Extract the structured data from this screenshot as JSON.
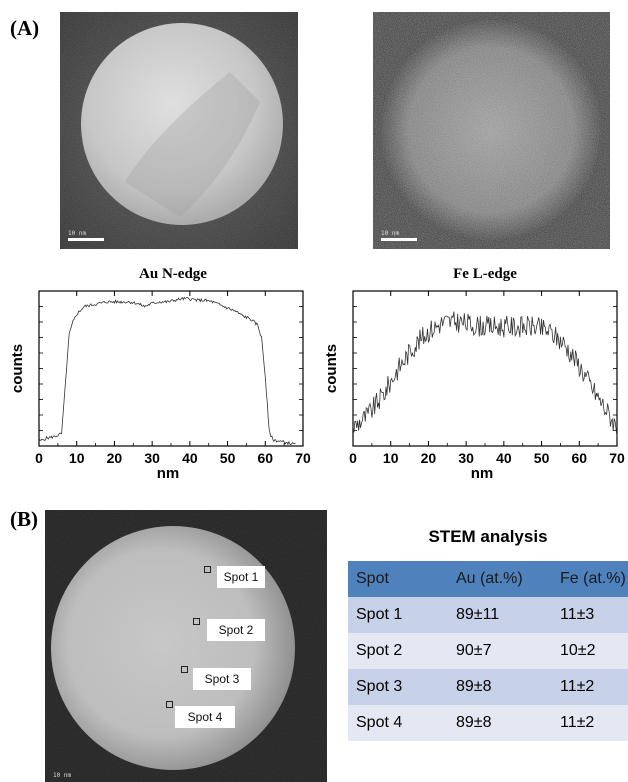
{
  "panels": {
    "a_label": "(A)",
    "b_label": "(B)"
  },
  "micrographs": {
    "scale_bar_text": "10 nm"
  },
  "chart_data": [
    {
      "type": "line",
      "title": "Au N-edge",
      "xlabel": "nm",
      "ylabel": "counts",
      "xlim": [
        0,
        70
      ],
      "xticks": [
        0,
        10,
        20,
        30,
        40,
        50,
        60,
        70
      ],
      "y_tick_labels_shown": false,
      "series": [
        {
          "x": [
            0,
            2,
            4,
            6,
            7,
            8,
            9,
            10,
            12,
            14,
            16,
            18,
            20,
            22,
            24,
            26,
            28,
            30,
            32,
            34,
            36,
            38,
            40,
            42,
            44,
            46,
            48,
            50,
            52,
            54,
            56,
            58,
            59,
            60,
            61,
            62,
            64,
            66,
            68
          ],
          "y": [
            0.03,
            0.05,
            0.06,
            0.08,
            0.4,
            0.72,
            0.8,
            0.85,
            0.9,
            0.91,
            0.92,
            0.93,
            0.93,
            0.93,
            0.93,
            0.92,
            0.9,
            0.92,
            0.93,
            0.93,
            0.94,
            0.95,
            0.95,
            0.94,
            0.94,
            0.93,
            0.91,
            0.89,
            0.87,
            0.84,
            0.82,
            0.78,
            0.7,
            0.45,
            0.1,
            0.04,
            0.03,
            0.02,
            0.01
          ]
        }
      ]
    },
    {
      "type": "line",
      "title": "Fe L-edge",
      "xlabel": "nm",
      "ylabel": "counts",
      "xlim": [
        0,
        70
      ],
      "xticks": [
        0,
        10,
        20,
        30,
        40,
        50,
        60,
        70
      ],
      "y_tick_labels_shown": false,
      "series": [
        {
          "x": [
            0,
            4,
            8,
            12,
            16,
            20,
            24,
            28,
            32,
            36,
            40,
            44,
            48,
            52,
            56,
            60,
            64,
            68,
            70
          ],
          "y": [
            0.12,
            0.2,
            0.33,
            0.5,
            0.64,
            0.74,
            0.8,
            0.8,
            0.78,
            0.77,
            0.77,
            0.77,
            0.77,
            0.74,
            0.66,
            0.52,
            0.35,
            0.2,
            0.12
          ]
        }
      ]
    }
  ],
  "spots": [
    "Spot 1",
    "Spot 2",
    "Spot 3",
    "Spot 4"
  ],
  "stem_table": {
    "title": "STEM analysis",
    "headers": [
      "Spot",
      "Au (at.%)",
      "Fe (at.%)"
    ],
    "rows": [
      [
        "Spot 1",
        "89±11",
        "11±3"
      ],
      [
        "Spot 2",
        "90±7",
        "10±2"
      ],
      [
        "Spot 3",
        "89±8",
        "11±2"
      ],
      [
        "Spot 4",
        "89±8",
        "11±2"
      ]
    ]
  }
}
